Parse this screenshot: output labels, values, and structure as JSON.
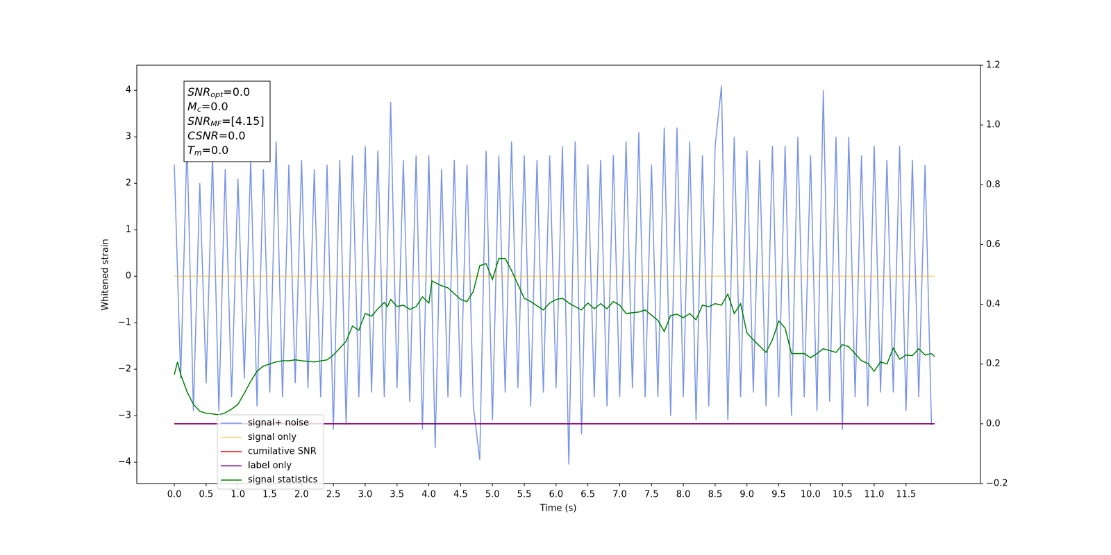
{
  "chart_data": {
    "type": "line",
    "xlabel": "Time (s)",
    "ylabel": "Whitened strain",
    "xlim": [
      -0.59,
      12.67
    ],
    "ylim": [
      -4.46,
      4.54
    ],
    "y2lim": [
      -0.2,
      1.2
    ],
    "xticks": [
      {
        "value": 0,
        "label": "0.0"
      },
      {
        "value": 0.5,
        "label": "0.5"
      },
      {
        "value": 1,
        "label": "1.0"
      },
      {
        "value": 1.5,
        "label": "1.5"
      },
      {
        "value": 2,
        "label": "2.0"
      },
      {
        "value": 2.5,
        "label": "2.5"
      },
      {
        "value": 3,
        "label": "3.0"
      },
      {
        "value": 3.5,
        "label": "3.5"
      },
      {
        "value": 4,
        "label": "4.0"
      },
      {
        "value": 4.5,
        "label": "4.5"
      },
      {
        "value": 5,
        "label": "5.0"
      },
      {
        "value": 5.5,
        "label": "5.5"
      },
      {
        "value": 6,
        "label": "6.0"
      },
      {
        "value": 6.5,
        "label": "6.5"
      },
      {
        "value": 7,
        "label": "7.0"
      },
      {
        "value": 7.5,
        "label": "7.5"
      },
      {
        "value": 8,
        "label": "8.0"
      },
      {
        "value": 8.5,
        "label": "8.5"
      },
      {
        "value": 9,
        "label": "9.0"
      },
      {
        "value": 9.5,
        "label": "9.5"
      },
      {
        "value": 10,
        "label": "10.0"
      },
      {
        "value": 10.5,
        "label": "10.5"
      },
      {
        "value": 11,
        "label": "11.0"
      },
      {
        "value": 11.5,
        "label": "11.5"
      }
    ],
    "yticks": [
      {
        "value": -4,
        "label": "−4"
      },
      {
        "value": -3,
        "label": "−3"
      },
      {
        "value": -2,
        "label": "−2"
      },
      {
        "value": -1,
        "label": "−1"
      },
      0,
      1,
      2,
      3,
      4
    ],
    "y2ticks": [
      {
        "value": -0.2,
        "label": "−0.2"
      },
      {
        "value": 0,
        "label": "0.0"
      },
      0.2,
      0.4,
      0.6,
      0.8,
      {
        "value": 1,
        "label": "1.0"
      },
      1.2
    ],
    "grid": false,
    "series": [
      {
        "name": "signal+ noise",
        "color": "#7894e6",
        "x": [
          0,
          0.1,
          0.2,
          0.3,
          0.4,
          0.5,
          0.6,
          0.7,
          0.8,
          0.9,
          1,
          1.1,
          1.2,
          1.3,
          1.4,
          1.5,
          1.6,
          1.7,
          1.8,
          1.9,
          2,
          2.1,
          2.2,
          2.3,
          2.4,
          2.5,
          2.6,
          2.7,
          2.8,
          2.9,
          3,
          3.1,
          3.2,
          3.3,
          3.4,
          3.5,
          3.6,
          3.7,
          3.8,
          3.9,
          4,
          4.1,
          4.2,
          4.3,
          4.4,
          4.5,
          4.6,
          4.7,
          4.8,
          4.9,
          5,
          5.1,
          5.2,
          5.3,
          5.4,
          5.5,
          5.6,
          5.7,
          5.8,
          5.9,
          6,
          6.1,
          6.2,
          6.3,
          6.4,
          6.5,
          6.6,
          6.7,
          6.8,
          6.9,
          7,
          7.1,
          7.2,
          7.3,
          7.4,
          7.5,
          7.6,
          7.7,
          7.8,
          7.9,
          8,
          8.1,
          8.2,
          8.3,
          8.4,
          8.5,
          8.6,
          8.7,
          8.8,
          8.9,
          9,
          9.1,
          9.2,
          9.3,
          9.4,
          9.5,
          9.6,
          9.7,
          9.8,
          9.9,
          10,
          10.1,
          10.2,
          10.3,
          10.4,
          10.5,
          10.6,
          10.7,
          10.8,
          10.9,
          11,
          11.1,
          11.2,
          11.3,
          11.4,
          11.5,
          11.6,
          11.7,
          11.8,
          11.9
        ],
        "values": [
          2.4,
          -2.2,
          2.9,
          -2.9,
          2.0,
          -2.3,
          2.6,
          -2.9,
          2.3,
          -2.6,
          2.1,
          -2.2,
          2.5,
          -2.8,
          2.3,
          -2.5,
          2.9,
          -2.6,
          2.4,
          -2.3,
          2.5,
          -2.4,
          2.3,
          -2.6,
          2.4,
          -3.3,
          2.5,
          -3.2,
          2.6,
          -2.6,
          2.8,
          -2.5,
          2.7,
          -2.6,
          3.75,
          -2.4,
          2.5,
          -2.7,
          2.6,
          -3.3,
          2.6,
          -3.7,
          2.3,
          -2.6,
          2.5,
          -2.6,
          2.4,
          -2.8,
          -3.95,
          2.7,
          -3.1,
          2.6,
          -2.5,
          2.9,
          -2.4,
          2.6,
          -2.8,
          2.5,
          -2.5,
          2.6,
          -2.4,
          2.8,
          -4.05,
          2.9,
          -3.4,
          2.4,
          -2.6,
          2.5,
          -2.8,
          2.6,
          -2.6,
          2.9,
          -2.4,
          3.1,
          -2.6,
          2.4,
          -2.6,
          3.2,
          -3.0,
          3.2,
          -2.6,
          2.9,
          -3.1,
          2.6,
          -2.8,
          2.8,
          4.1,
          -3.1,
          3.0,
          -2.6,
          2.7,
          -2.5,
          2.5,
          -2.8,
          2.8,
          -2.6,
          2.8,
          -3.0,
          3.0,
          -2.6,
          2.6,
          -2.9,
          4.0,
          -2.7,
          3.0,
          -3.3,
          3.0,
          -2.6,
          2.6,
          -2.8,
          2.8,
          -2.5,
          2.5,
          -2.5,
          2.8,
          -2.9,
          2.5,
          -2.6,
          2.4,
          -3.2
        ]
      },
      {
        "name": "signal only",
        "color": "#ffa500",
        "alpha": 0.5,
        "x": [
          0,
          11.95
        ],
        "values": [
          0,
          0
        ]
      },
      {
        "name": "cumilative SNR",
        "color": "#ff0000",
        "axis": "y2",
        "x": [
          0,
          11.95
        ],
        "values": [
          0,
          0
        ]
      },
      {
        "name": "label",
        "color": "#800080",
        "axis": "y2",
        "x": [
          0,
          11.95
        ],
        "values": [
          0,
          0
        ]
      },
      {
        "name": "signal statistics",
        "color": "#008000",
        "axis": "y2",
        "x": [
          0,
          0.05,
          0.1,
          0.2,
          0.3,
          0.4,
          0.5,
          0.6,
          0.7,
          0.8,
          0.9,
          1,
          1.1,
          1.2,
          1.3,
          1.4,
          1.5,
          1.6,
          1.7,
          1.8,
          1.9,
          2,
          2.2,
          2.4,
          2.5,
          2.6,
          2.7,
          2.8,
          2.9,
          3,
          3.1,
          3.2,
          3.3,
          3.35,
          3.4,
          3.5,
          3.6,
          3.7,
          3.8,
          3.9,
          4,
          4.05,
          4.2,
          4.3,
          4.5,
          4.6,
          4.7,
          4.8,
          4.9,
          5,
          5.1,
          5.2,
          5.3,
          5.5,
          5.6,
          5.8,
          5.9,
          6,
          6.1,
          6.2,
          6.3,
          6.4,
          6.5,
          6.6,
          6.7,
          6.8,
          6.9,
          7,
          7.1,
          7.3,
          7.4,
          7.6,
          7.7,
          7.8,
          7.9,
          8,
          8.1,
          8.2,
          8.3,
          8.4,
          8.5,
          8.6,
          8.7,
          8.8,
          8.9,
          9,
          9.1,
          9.3,
          9.4,
          9.5,
          9.6,
          9.7,
          9.9,
          10,
          10.1,
          10.2,
          10.4,
          10.5,
          10.6,
          10.8,
          10.9,
          11,
          11.1,
          11.2,
          11.3,
          11.4,
          11.5,
          11.6,
          11.7,
          11.8,
          11.9,
          11.95
        ],
        "values": [
          0.165,
          0.207,
          0.165,
          0.107,
          0.065,
          0.042,
          0.035,
          0.033,
          0.03,
          0.037,
          0.049,
          0.065,
          0.102,
          0.142,
          0.176,
          0.193,
          0.2,
          0.207,
          0.211,
          0.211,
          0.214,
          0.211,
          0.207,
          0.214,
          0.23,
          0.253,
          0.276,
          0.327,
          0.313,
          0.369,
          0.36,
          0.385,
          0.406,
          0.392,
          0.416,
          0.392,
          0.397,
          0.383,
          0.392,
          0.425,
          0.404,
          0.478,
          0.462,
          0.455,
          0.416,
          0.409,
          0.443,
          0.529,
          0.536,
          0.483,
          0.553,
          0.553,
          0.513,
          0.42,
          0.409,
          0.381,
          0.404,
          0.416,
          0.42,
          0.404,
          0.392,
          0.381,
          0.404,
          0.385,
          0.402,
          0.385,
          0.409,
          0.397,
          0.369,
          0.374,
          0.381,
          0.346,
          0.309,
          0.362,
          0.367,
          0.355,
          0.369,
          0.348,
          0.397,
          0.392,
          0.402,
          0.397,
          0.434,
          0.369,
          0.402,
          0.304,
          0.281,
          0.239,
          0.281,
          0.344,
          0.32,
          0.235,
          0.235,
          0.221,
          0.235,
          0.251,
          0.239,
          0.265,
          0.258,
          0.211,
          0.202,
          0.176,
          0.207,
          0.2,
          0.253,
          0.216,
          0.23,
          0.228,
          0.251,
          0.23,
          0.235,
          0.225
        ]
      }
    ],
    "legend_ghost_text": "label only",
    "stats_box": [
      {
        "symbol": "SNR",
        "sub": "opt",
        "text": "=0.0"
      },
      {
        "symbol": "M",
        "sub": "c",
        "text": "=0.0"
      },
      {
        "symbol": "SNR",
        "sub": "MF",
        "text": "=[4.15]"
      },
      {
        "symbol": "CSNR",
        "sub": null,
        "text": "=0.0"
      },
      {
        "symbol": "T",
        "sub": "m",
        "text": "=0.0"
      }
    ]
  }
}
